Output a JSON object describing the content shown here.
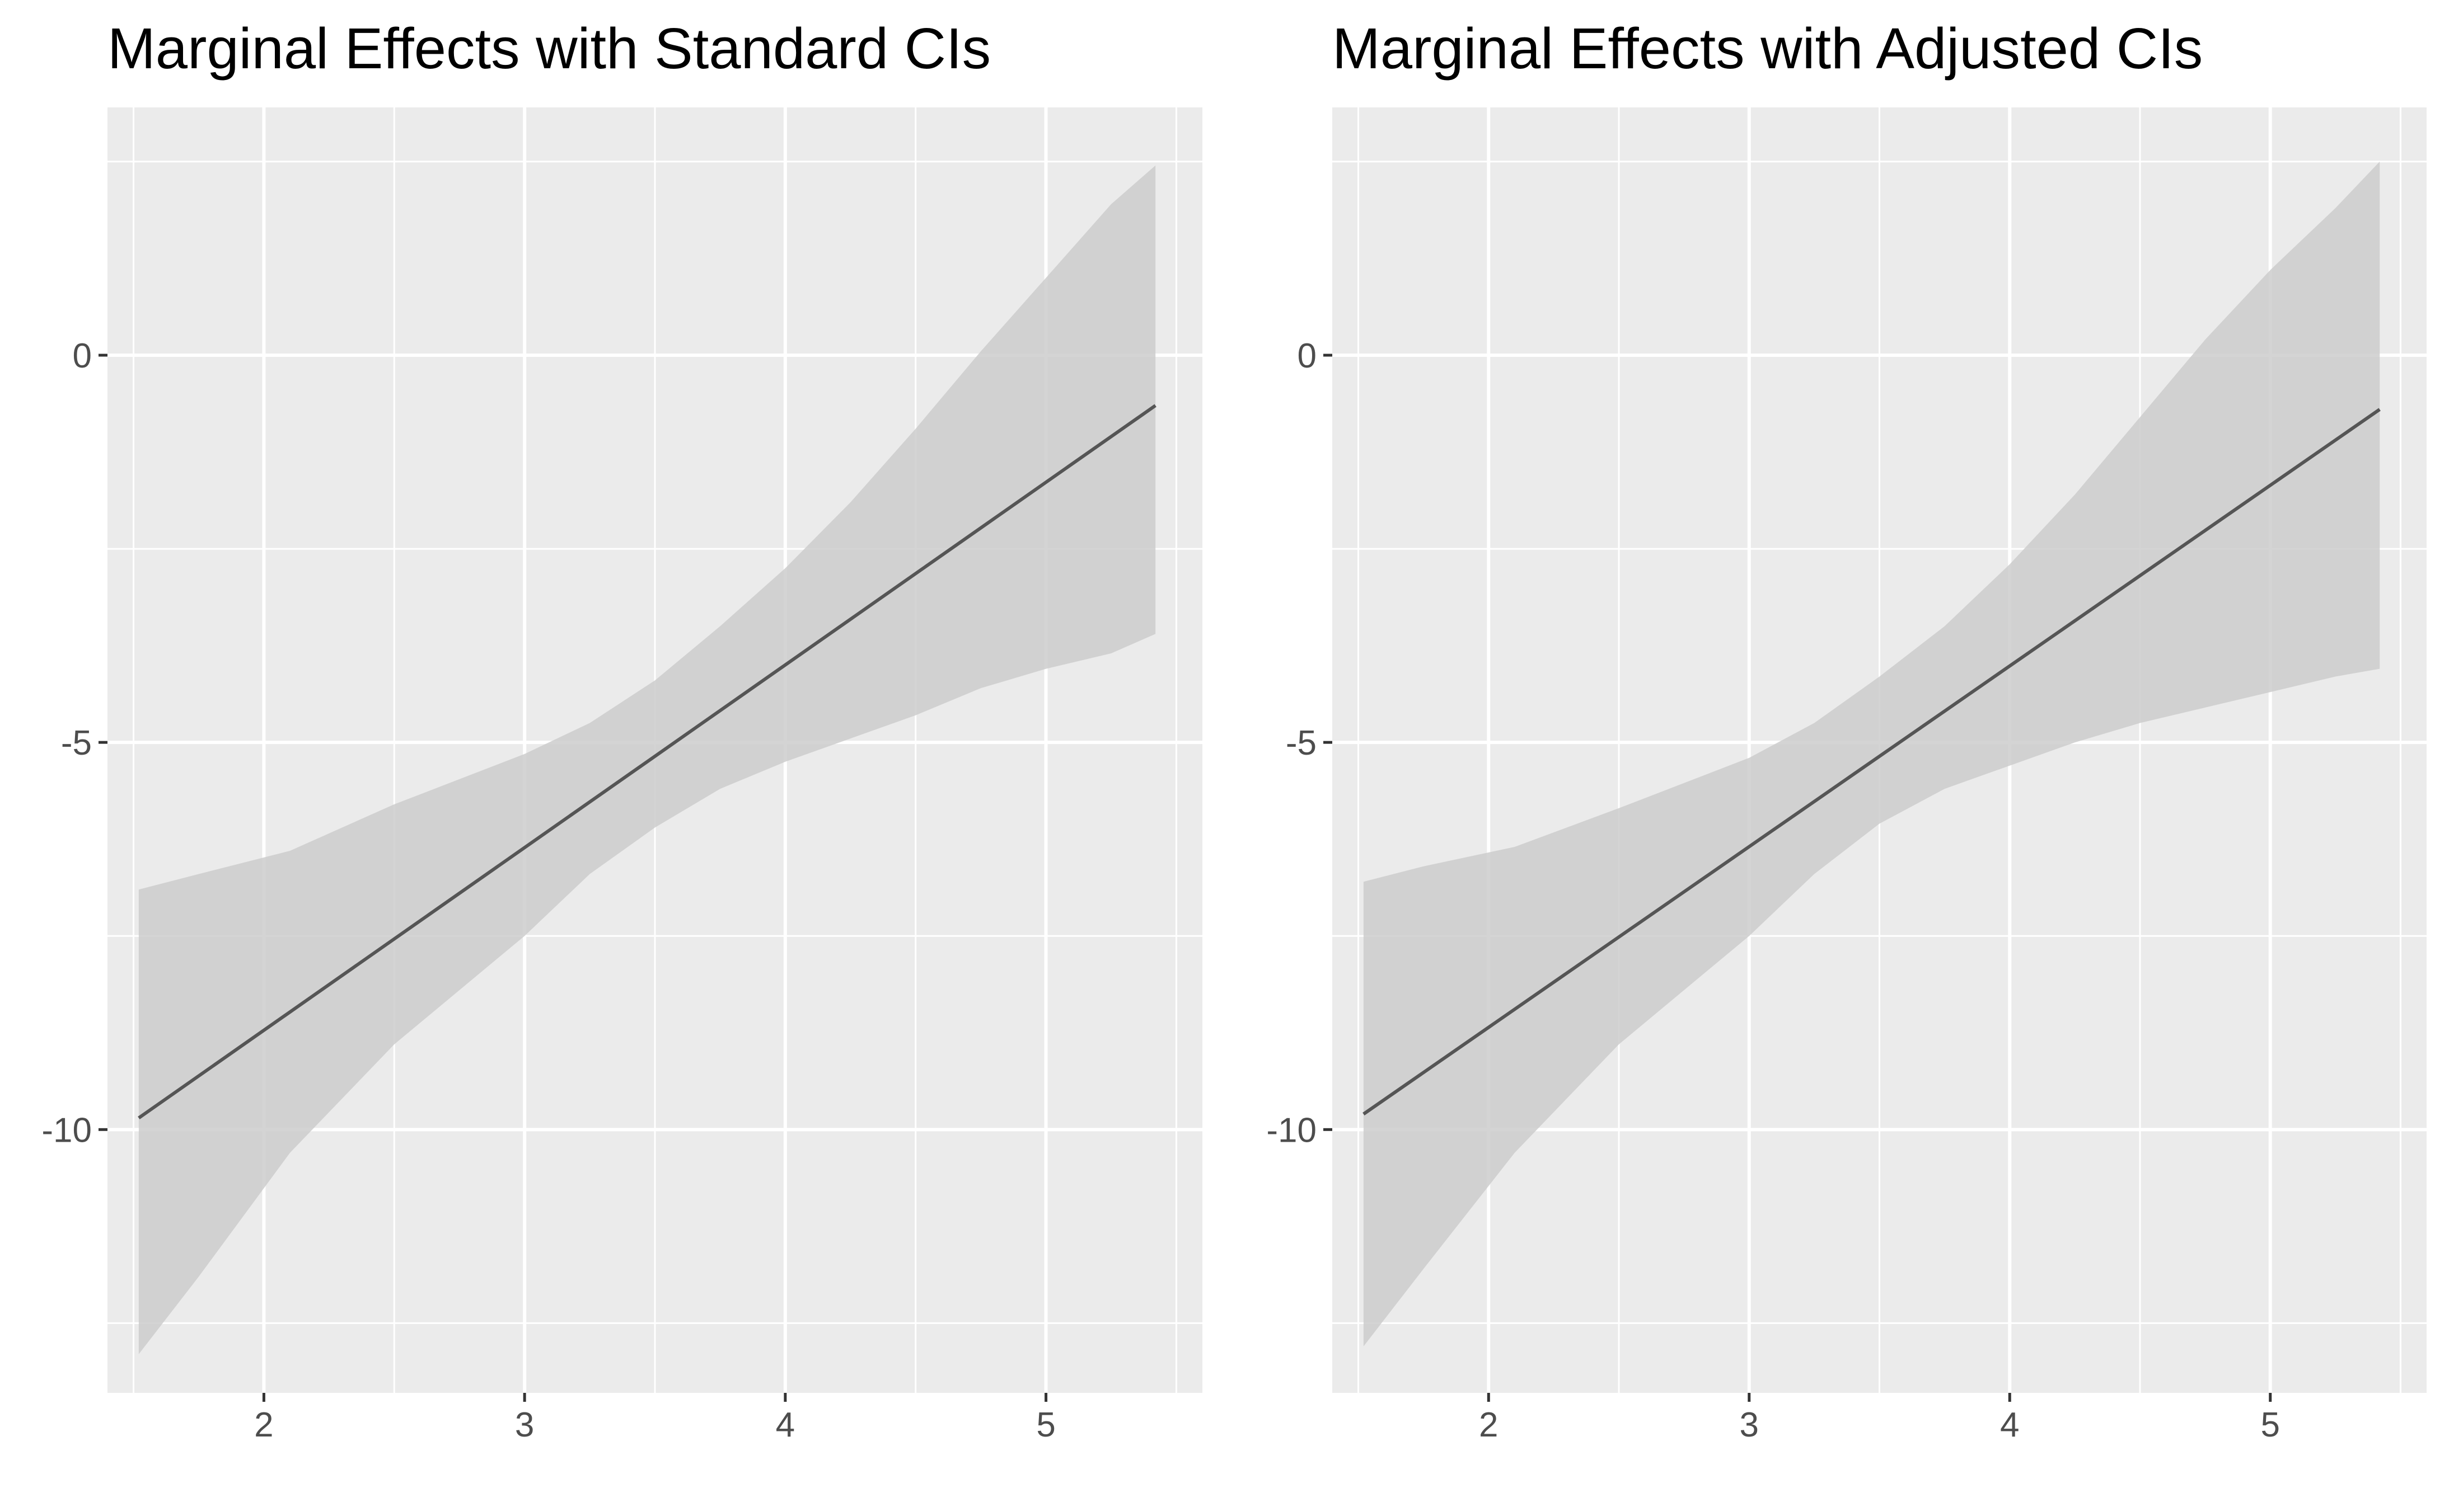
{
  "chart_data": [
    {
      "type": "area",
      "title": "Marginal Effects with Standard CIs",
      "xlabel": "",
      "ylabel": "",
      "xlim": [
        1.4,
        5.6
      ],
      "ylim": [
        -13.4,
        3.2
      ],
      "x_major_ticks": [
        2,
        3,
        4,
        5
      ],
      "x_tick_labels": [
        "2",
        "3",
        "4",
        "5"
      ],
      "x_minor_ticks": [
        1.5,
        2.5,
        3.5,
        4.5,
        5.5
      ],
      "y_major_ticks": [
        0,
        -5,
        -10
      ],
      "y_tick_labels": [
        "0",
        "-5",
        "-10"
      ],
      "y_minor_ticks": [
        2.5,
        -2.5,
        -7.5,
        -12.5
      ],
      "grid": true,
      "legend": "none",
      "series": [
        {
          "role": "estimate",
          "x": [
            1.52,
            5.42
          ],
          "y": [
            -9.85,
            -0.65
          ]
        },
        {
          "role": "confidence-band",
          "x": [
            1.52,
            1.75,
            2.1,
            2.5,
            3.0,
            3.25,
            3.5,
            3.75,
            4.0,
            4.25,
            4.5,
            4.75,
            5.0,
            5.25,
            5.42
          ],
          "lower": [
            -12.9,
            -11.9,
            -10.3,
            -8.9,
            -7.5,
            -6.7,
            -6.1,
            -5.6,
            -5.25,
            -4.95,
            -4.65,
            -4.3,
            -4.05,
            -3.85,
            -3.6
          ],
          "upper": [
            -6.9,
            -6.7,
            -6.4,
            -5.8,
            -5.15,
            -4.75,
            -4.2,
            -3.5,
            -2.75,
            -1.9,
            -0.95,
            0.05,
            1.0,
            1.95,
            2.45
          ]
        }
      ]
    },
    {
      "type": "area",
      "title": "Marginal Effects with Adjusted CIs",
      "xlabel": "",
      "ylabel": "",
      "xlim": [
        1.4,
        5.6
      ],
      "ylim": [
        -13.4,
        3.2
      ],
      "x_major_ticks": [
        2,
        3,
        4,
        5
      ],
      "x_tick_labels": [
        "2",
        "3",
        "4",
        "5"
      ],
      "x_minor_ticks": [
        1.5,
        2.5,
        3.5,
        4.5,
        5.5
      ],
      "y_major_ticks": [
        0,
        -5,
        -10
      ],
      "y_tick_labels": [
        "0",
        "-5",
        "-10"
      ],
      "y_minor_ticks": [
        2.5,
        -2.5,
        -7.5,
        -12.5
      ],
      "grid": true,
      "legend": "none",
      "series": [
        {
          "role": "estimate",
          "x": [
            1.52,
            5.42
          ],
          "y": [
            -9.8,
            -0.7
          ]
        },
        {
          "role": "confidence-band",
          "x": [
            1.52,
            1.75,
            2.1,
            2.5,
            3.0,
            3.25,
            3.5,
            3.75,
            4.0,
            4.25,
            4.5,
            4.75,
            5.0,
            5.25,
            5.42
          ],
          "lower": [
            -12.8,
            -11.8,
            -10.3,
            -8.9,
            -7.5,
            -6.7,
            -6.05,
            -5.6,
            -5.3,
            -5.0,
            -4.75,
            -4.55,
            -4.35,
            -4.15,
            -4.05
          ],
          "upper": [
            -6.8,
            -6.6,
            -6.35,
            -5.85,
            -5.2,
            -4.75,
            -4.15,
            -3.5,
            -2.7,
            -1.8,
            -0.8,
            0.2,
            1.1,
            1.9,
            2.5
          ]
        }
      ]
    }
  ]
}
